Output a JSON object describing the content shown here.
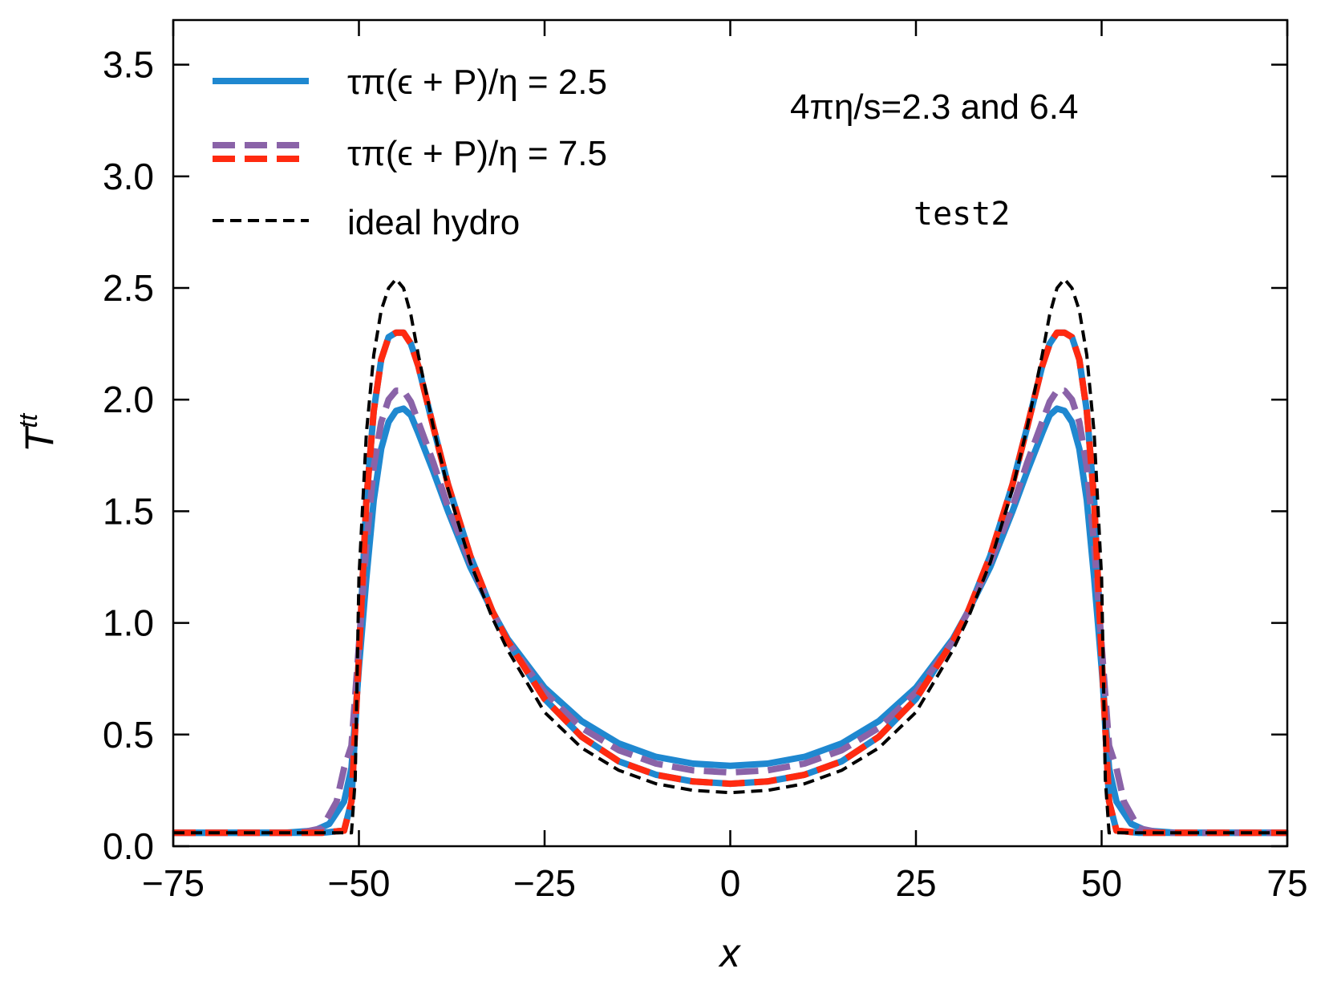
{
  "chart_data": {
    "type": "line",
    "title": "",
    "xlabel": "x",
    "ylabel": "T",
    "ylabel_superscript": "tt",
    "xlim": [
      -75,
      75
    ],
    "ylim": [
      0,
      3.7
    ],
    "xticks": [
      -75,
      -50,
      -25,
      0,
      25,
      50,
      75
    ],
    "xtick_labels": [
      "−75",
      "−50",
      "−25",
      "0",
      "25",
      "50",
      "75"
    ],
    "yticks": [
      0,
      0.5,
      1,
      1.5,
      2,
      2.5,
      3,
      3.5
    ],
    "ytick_labels": [
      "0.0",
      "0.5",
      "1.0",
      "1.5",
      "2.0",
      "2.5",
      "3.0",
      "3.5"
    ],
    "grid": false,
    "legend_position": "top-left",
    "annotations": [
      "4πη/s=2.3 and 6.4",
      "test2"
    ],
    "series": [
      {
        "name": "τπ(ϵ + P)/η = 2.5",
        "color": "#1f88d0",
        "style": "solid",
        "curves": [
          {
            "x": [
              -75,
              -60,
              -56,
              -54,
              -52,
              -51,
              -50,
              -49,
              -48,
              -47,
              -46,
              -45,
              -44,
              -43,
              -42,
              -40,
              -38,
              -35,
              -32,
              -30,
              -25,
              -20,
              -15,
              -10,
              -5,
              0,
              5,
              10,
              15,
              20,
              25,
              30,
              32,
              35,
              38,
              40,
              42,
              43,
              44,
              45,
              46,
              47,
              48,
              49,
              50,
              51,
              52,
              54,
              56,
              60,
              75
            ],
            "y": [
              0.06,
              0.06,
              0.07,
              0.1,
              0.2,
              0.35,
              0.8,
              1.2,
              1.55,
              1.78,
              1.9,
              1.95,
              1.96,
              1.93,
              1.85,
              1.68,
              1.5,
              1.25,
              1.05,
              0.93,
              0.71,
              0.56,
              0.46,
              0.4,
              0.37,
              0.36,
              0.37,
              0.4,
              0.46,
              0.56,
              0.71,
              0.93,
              1.05,
              1.25,
              1.5,
              1.68,
              1.85,
              1.93,
              1.96,
              1.95,
              1.9,
              1.78,
              1.55,
              1.2,
              0.8,
              0.35,
              0.2,
              0.1,
              0.07,
              0.06,
              0.06
            ]
          },
          {
            "x": [
              -75,
              -55,
              -52,
              -51,
              -50,
              -49,
              -48,
              -47,
              -46,
              -45,
              -44,
              -43,
              -42,
              -40,
              -38,
              -35,
              -32,
              -30,
              -25,
              -20,
              -15,
              -10,
              -5,
              0,
              5,
              10,
              15,
              20,
              25,
              30,
              32,
              35,
              38,
              40,
              42,
              43,
              44,
              45,
              46,
              47,
              48,
              49,
              50,
              51,
              52,
              55,
              75
            ],
            "y": [
              0.06,
              0.06,
              0.07,
              0.2,
              0.85,
              1.55,
              1.95,
              2.18,
              2.28,
              2.3,
              2.3,
              2.25,
              2.15,
              1.88,
              1.62,
              1.3,
              1.05,
              0.92,
              0.66,
              0.49,
              0.38,
              0.32,
              0.29,
              0.28,
              0.29,
              0.32,
              0.38,
              0.49,
              0.66,
              0.92,
              1.05,
              1.3,
              1.62,
              1.88,
              2.15,
              2.25,
              2.3,
              2.3,
              2.28,
              2.18,
              1.95,
              1.55,
              0.85,
              0.2,
              0.07,
              0.06,
              0.06
            ]
          }
        ]
      },
      {
        "name": "τπ(ϵ + P)/η = 7.5",
        "color": "#8a63a8",
        "color2": "#ff2a10",
        "style": "dashed",
        "curves": [
          {
            "x": [
              -75,
              -58,
              -55,
              -53,
              -52,
              -51,
              -50,
              -49,
              -48,
              -47,
              -46,
              -45,
              -44,
              -43,
              -42,
              -40,
              -38,
              -35,
              -32,
              -30,
              -25,
              -20,
              -15,
              -10,
              -5,
              0,
              5,
              10,
              15,
              20,
              25,
              30,
              32,
              35,
              38,
              40,
              42,
              43,
              44,
              45,
              46,
              47,
              48,
              49,
              50,
              51,
              52,
              53,
              55,
              58,
              75
            ],
            "y": [
              0.06,
              0.06,
              0.08,
              0.2,
              0.35,
              0.45,
              0.9,
              1.35,
              1.7,
              1.9,
              2.0,
              2.04,
              2.04,
              1.99,
              1.9,
              1.72,
              1.52,
              1.27,
              1.05,
              0.92,
              0.69,
              0.53,
              0.43,
              0.37,
              0.34,
              0.33,
              0.34,
              0.37,
              0.43,
              0.53,
              0.69,
              0.92,
              1.05,
              1.27,
              1.52,
              1.72,
              1.9,
              1.99,
              2.04,
              2.04,
              2.0,
              1.9,
              1.7,
              1.35,
              0.9,
              0.45,
              0.35,
              0.2,
              0.08,
              0.06,
              0.06
            ]
          },
          {
            "x": [
              -75,
              -55,
              -52,
              -51,
              -50,
              -49,
              -48,
              -47,
              -46,
              -45,
              -44,
              -43,
              -42,
              -40,
              -38,
              -35,
              -32,
              -30,
              -25,
              -20,
              -15,
              -10,
              -5,
              0,
              5,
              10,
              15,
              20,
              25,
              30,
              32,
              35,
              38,
              40,
              42,
              43,
              44,
              45,
              46,
              47,
              48,
              49,
              50,
              51,
              52,
              55,
              75
            ],
            "y": [
              0.06,
              0.06,
              0.07,
              0.2,
              0.85,
              1.55,
              1.95,
              2.18,
              2.28,
              2.3,
              2.3,
              2.25,
              2.15,
              1.88,
              1.62,
              1.3,
              1.05,
              0.92,
              0.66,
              0.49,
              0.38,
              0.32,
              0.29,
              0.28,
              0.29,
              0.32,
              0.38,
              0.49,
              0.66,
              0.92,
              1.05,
              1.3,
              1.62,
              1.88,
              2.15,
              2.25,
              2.3,
              2.3,
              2.28,
              2.18,
              1.95,
              1.55,
              0.85,
              0.2,
              0.07,
              0.06,
              0.06
            ]
          }
        ]
      },
      {
        "name": "ideal hydro",
        "color": "#000000",
        "style": "dashed",
        "curves": [
          {
            "x": [
              -75,
              -51,
              -50.5,
              -50,
              -49,
              -48,
              -47,
              -46,
              -45,
              -44,
              -43,
              -42,
              -40,
              -38,
              -35,
              -32,
              -30,
              -25,
              -20,
              -15,
              -10,
              -5,
              0,
              5,
              10,
              15,
              20,
              25,
              30,
              32,
              35,
              38,
              40,
              42,
              43,
              44,
              45,
              46,
              47,
              48,
              49,
              50,
              50.5,
              51,
              75
            ],
            "y": [
              0.06,
              0.06,
              0.3,
              1.2,
              1.85,
              2.2,
              2.4,
              2.5,
              2.54,
              2.5,
              2.38,
              2.2,
              1.88,
              1.6,
              1.27,
              1.02,
              0.88,
              0.6,
              0.44,
              0.34,
              0.28,
              0.25,
              0.24,
              0.25,
              0.28,
              0.34,
              0.44,
              0.6,
              0.88,
              1.02,
              1.27,
              1.6,
              1.88,
              2.2,
              2.38,
              2.5,
              2.54,
              2.5,
              2.4,
              2.2,
              1.85,
              1.2,
              0.3,
              0.06,
              0.06
            ]
          }
        ]
      }
    ]
  }
}
